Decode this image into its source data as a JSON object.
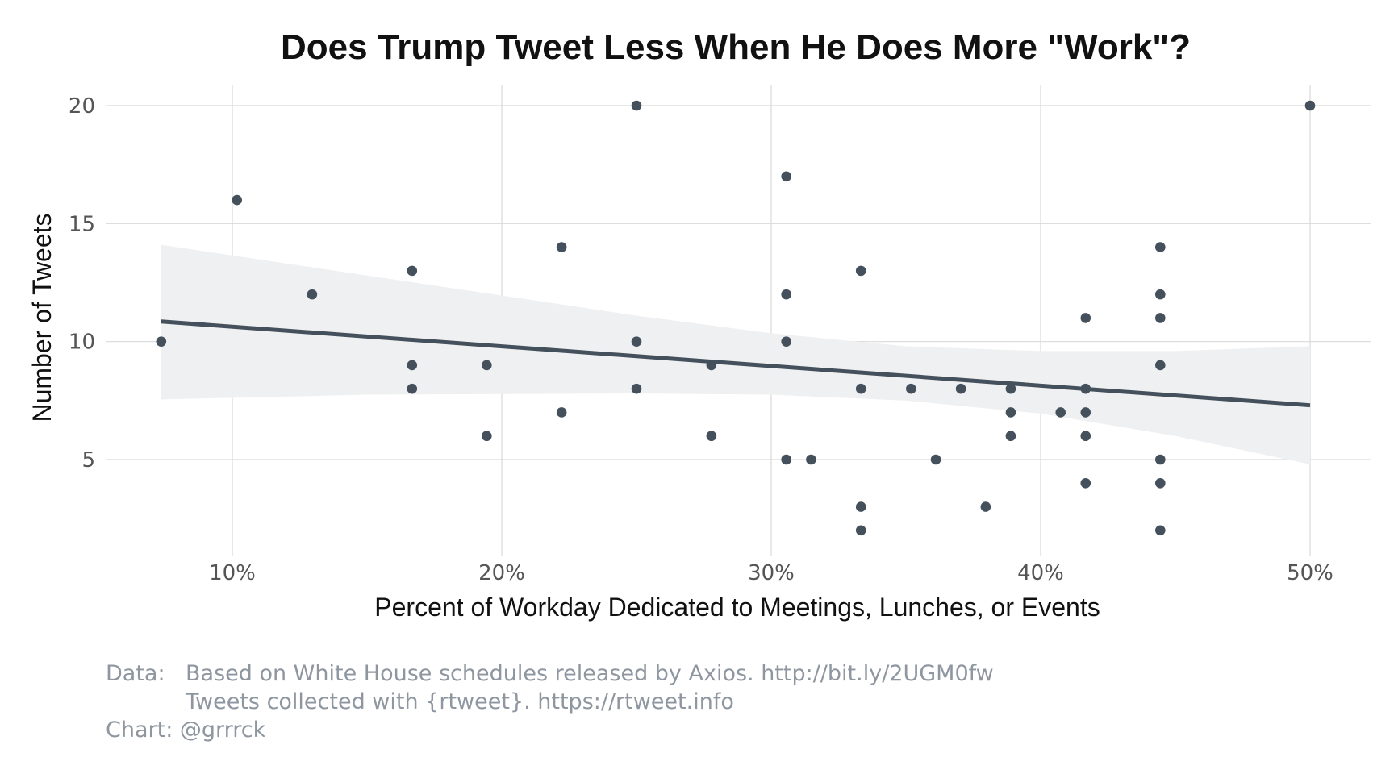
{
  "chart_data": {
    "type": "scatter",
    "title": "Does Trump Tweet Less When He Does More \"Work\"?",
    "xlabel": "Percent of Workday Dedicated to Meetings, Lunches, or Events",
    "ylabel": "Number of Tweets",
    "xlim": [
      0.05,
      0.52
    ],
    "ylim": [
      1.0,
      21.0
    ],
    "x_ticks": [
      0.1,
      0.2,
      0.3,
      0.4,
      0.5
    ],
    "x_tick_labels": [
      "10%",
      "20%",
      "30%",
      "40%",
      "50%"
    ],
    "y_ticks": [
      5,
      10,
      15,
      20
    ],
    "y_tick_labels": [
      "5",
      "10",
      "15",
      "20"
    ],
    "grid": true,
    "point_color": "#44505c",
    "trend_line": {
      "x": [
        0.0736,
        0.5
      ],
      "y": [
        10.85,
        7.3
      ],
      "color": "#44505c"
    },
    "confidence_band": {
      "color": "#eff0f1",
      "x": [
        0.0736,
        0.15,
        0.25,
        0.3,
        0.35,
        0.4,
        0.45,
        0.5
      ],
      "upper": [
        14.1,
        12.8,
        11.1,
        10.35,
        9.8,
        9.6,
        9.6,
        9.8
      ],
      "lower": [
        7.55,
        7.75,
        7.8,
        7.75,
        7.5,
        6.95,
        6.0,
        4.8
      ]
    },
    "points": [
      {
        "x": 0.0736,
        "y": 10
      },
      {
        "x": 0.1017,
        "y": 16
      },
      {
        "x": 0.1296,
        "y": 12
      },
      {
        "x": 0.1667,
        "y": 13
      },
      {
        "x": 0.1667,
        "y": 9
      },
      {
        "x": 0.1667,
        "y": 8
      },
      {
        "x": 0.1944,
        "y": 9
      },
      {
        "x": 0.1944,
        "y": 6
      },
      {
        "x": 0.2222,
        "y": 14
      },
      {
        "x": 0.2222,
        "y": 7
      },
      {
        "x": 0.25,
        "y": 20
      },
      {
        "x": 0.25,
        "y": 10
      },
      {
        "x": 0.25,
        "y": 8
      },
      {
        "x": 0.2778,
        "y": 9
      },
      {
        "x": 0.2778,
        "y": 6
      },
      {
        "x": 0.3056,
        "y": 17
      },
      {
        "x": 0.3056,
        "y": 12
      },
      {
        "x": 0.3056,
        "y": 10
      },
      {
        "x": 0.3056,
        "y": 5
      },
      {
        "x": 0.3148,
        "y": 5
      },
      {
        "x": 0.3333,
        "y": 13
      },
      {
        "x": 0.3333,
        "y": 8
      },
      {
        "x": 0.3333,
        "y": 3
      },
      {
        "x": 0.3333,
        "y": 2
      },
      {
        "x": 0.3519,
        "y": 8
      },
      {
        "x": 0.3611,
        "y": 5
      },
      {
        "x": 0.3704,
        "y": 8
      },
      {
        "x": 0.3796,
        "y": 3
      },
      {
        "x": 0.3889,
        "y": 8
      },
      {
        "x": 0.3889,
        "y": 7
      },
      {
        "x": 0.3889,
        "y": 6
      },
      {
        "x": 0.4074,
        "y": 7
      },
      {
        "x": 0.4167,
        "y": 11
      },
      {
        "x": 0.4167,
        "y": 8
      },
      {
        "x": 0.4167,
        "y": 7
      },
      {
        "x": 0.4167,
        "y": 6
      },
      {
        "x": 0.4167,
        "y": 4
      },
      {
        "x": 0.4444,
        "y": 14
      },
      {
        "x": 0.4444,
        "y": 12
      },
      {
        "x": 0.4444,
        "y": 11
      },
      {
        "x": 0.4444,
        "y": 9
      },
      {
        "x": 0.4444,
        "y": 5
      },
      {
        "x": 0.4444,
        "y": 4
      },
      {
        "x": 0.4444,
        "y": 2
      },
      {
        "x": 0.5,
        "y": 20
      }
    ]
  },
  "caption": {
    "data_label": "Data:",
    "data_line1": "Based on White House schedules released by Axios. http://bit.ly/2UGM0fw",
    "data_line2": "Tweets collected with {rtweet}. https://rtweet.info",
    "chart_credit": "Chart: @grrrck"
  }
}
